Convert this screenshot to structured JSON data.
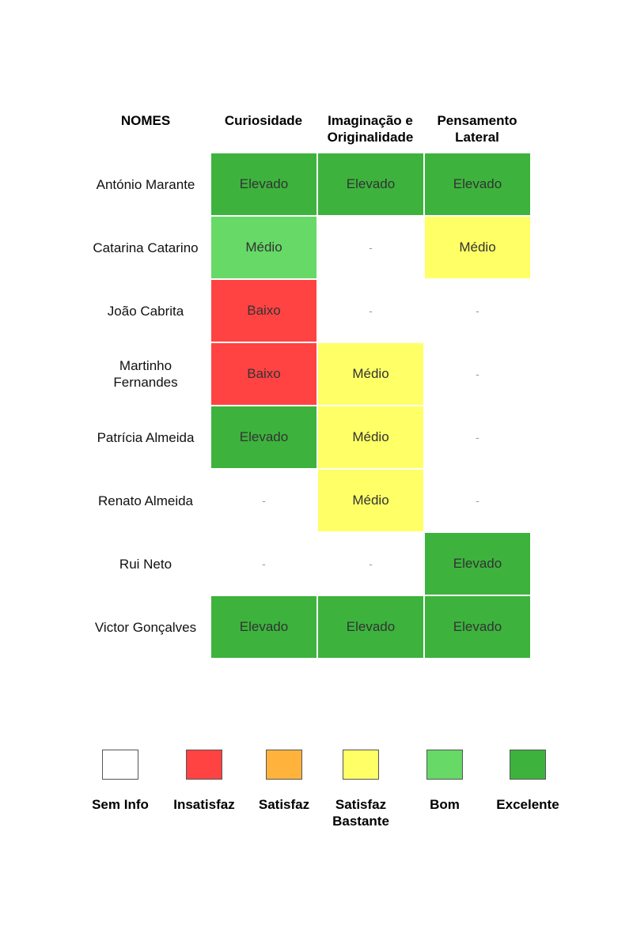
{
  "header": {
    "names": "NOMES",
    "columns": [
      "Curiosidade",
      "Imaginação e Originalidade",
      "Pensamento Lateral"
    ]
  },
  "levels": {
    "sem_info": {
      "label": "Sem Info",
      "color": "#ffffff"
    },
    "insatisfaz": {
      "label": "Insatisfaz",
      "color": "#ff4343"
    },
    "satisfaz": {
      "label": "Satisfaz",
      "color": "#ffb33d"
    },
    "satisfaz_bastante": {
      "label": "Satisfaz Bastante",
      "color": "#ffff66"
    },
    "bom": {
      "label": "Bom",
      "color": "#66d966"
    },
    "excelente": {
      "label": "Excelente",
      "color": "#3db33d"
    }
  },
  "rows": [
    {
      "name": "António Marante",
      "cells": [
        {
          "text": "Elevado",
          "level": "excelente"
        },
        {
          "text": "Elevado",
          "level": "excelente"
        },
        {
          "text": "Elevado",
          "level": "excelente"
        }
      ]
    },
    {
      "name": "Catarina Catarino",
      "cells": [
        {
          "text": "Médio",
          "level": "bom"
        },
        {
          "text": "-",
          "level": "sem_info"
        },
        {
          "text": "Médio",
          "level": "satisfaz_bastante"
        }
      ]
    },
    {
      "name": "João Cabrita",
      "cells": [
        {
          "text": "Baixo",
          "level": "insatisfaz"
        },
        {
          "text": "-",
          "level": "sem_info"
        },
        {
          "text": "-",
          "level": "sem_info"
        }
      ]
    },
    {
      "name": "Martinho Fernandes",
      "cells": [
        {
          "text": "Baixo",
          "level": "insatisfaz"
        },
        {
          "text": "Médio",
          "level": "satisfaz_bastante"
        },
        {
          "text": "-",
          "level": "sem_info"
        }
      ]
    },
    {
      "name": "Patrícia Almeida",
      "cells": [
        {
          "text": "Elevado",
          "level": "excelente"
        },
        {
          "text": "Médio",
          "level": "satisfaz_bastante"
        },
        {
          "text": "-",
          "level": "sem_info"
        }
      ]
    },
    {
      "name": "Renato Almeida",
      "cells": [
        {
          "text": "-",
          "level": "sem_info"
        },
        {
          "text": "Médio",
          "level": "satisfaz_bastante"
        },
        {
          "text": "-",
          "level": "sem_info"
        }
      ]
    },
    {
      "name": "Rui Neto",
      "cells": [
        {
          "text": "-",
          "level": "sem_info"
        },
        {
          "text": "-",
          "level": "sem_info"
        },
        {
          "text": "Elevado",
          "level": "excelente"
        }
      ]
    },
    {
      "name": "Victor Gonçalves",
      "cells": [
        {
          "text": "Elevado",
          "level": "excelente"
        },
        {
          "text": "Elevado",
          "level": "excelente"
        },
        {
          "text": "Elevado",
          "level": "excelente"
        }
      ]
    }
  ],
  "legend_order": [
    "sem_info",
    "insatisfaz",
    "satisfaz",
    "satisfaz_bastante",
    "bom",
    "excelente"
  ]
}
